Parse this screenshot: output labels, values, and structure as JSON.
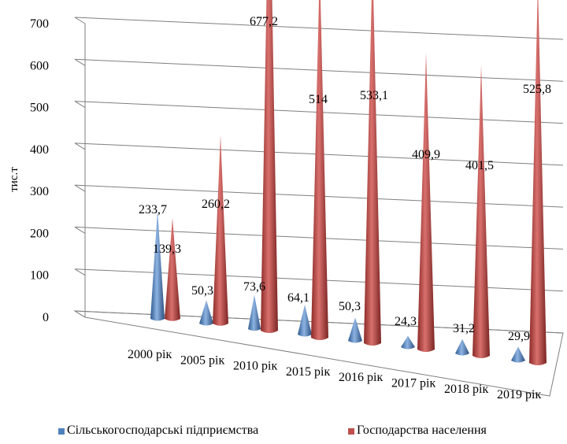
{
  "chart_data": {
    "type": "bar",
    "style": "3d-cone",
    "categories": [
      "2000 рік",
      "2005 рік",
      "2010 рік",
      "2015 рік",
      "2016 рік",
      "2017 рік",
      "2018 рік",
      "2019 рік"
    ],
    "series": [
      {
        "name": "Сільськогосподарські підприємства",
        "values": [
          233.7,
          50.3,
          73.6,
          64.1,
          50.3,
          24.3,
          31.2,
          29.9
        ],
        "labels": [
          "233,7",
          "50,3",
          "73,6",
          "64,1",
          "50,3",
          "24,3",
          "31,2",
          "29,9"
        ],
        "color": "#4F81BD"
      },
      {
        "name": "Господарства населення",
        "values": [
          139.3,
          260.2,
          677.2,
          514,
          533.1,
          409.9,
          401.5,
          525.8
        ],
        "labels": [
          "139,3",
          "260,2",
          "677,2",
          "514",
          "533,1",
          "409,9",
          "401,5",
          "525,8"
        ],
        "color": "#C0504D"
      }
    ],
    "ylabel": "тис.т",
    "ylim": [
      0,
      700
    ],
    "yticks": [
      0,
      100,
      200,
      300,
      400,
      500,
      600,
      700
    ],
    "grid": true,
    "legend": "bottom"
  }
}
